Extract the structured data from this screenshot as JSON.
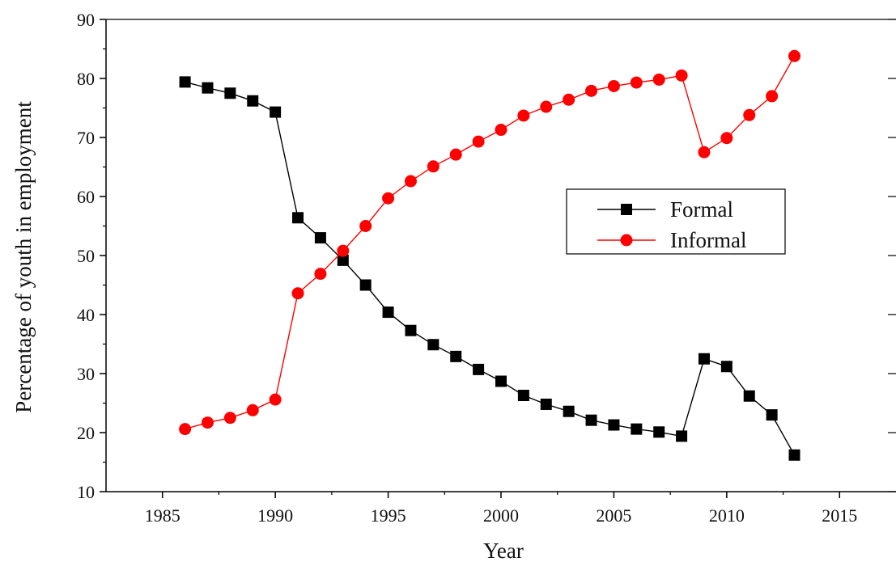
{
  "chart_data": {
    "type": "line",
    "title": "",
    "xlabel": "Year",
    "ylabel": "Percentage of youth in employment",
    "xlim": [
      1982.5,
      2017.5
    ],
    "ylim": [
      10,
      90
    ],
    "xticks": [
      1985,
      1990,
      1995,
      2000,
      2005,
      2010,
      2015
    ],
    "yticks": [
      10,
      20,
      30,
      40,
      50,
      60,
      70,
      80,
      90
    ],
    "grid": false,
    "legend_position": "center-right",
    "x": [
      1986,
      1987,
      1988,
      1989,
      1990,
      1991,
      1992,
      1993,
      1994,
      1995,
      1996,
      1997,
      1998,
      1999,
      2000,
      2001,
      2002,
      2003,
      2004,
      2005,
      2006,
      2007,
      2008,
      2009,
      2010,
      2011,
      2012,
      2013
    ],
    "series": [
      {
        "name": "Formal",
        "color": "#000000",
        "marker": "square",
        "values": [
          79.4,
          78.4,
          77.5,
          76.2,
          74.3,
          56.4,
          53.0,
          49.2,
          45.0,
          40.4,
          37.3,
          34.9,
          32.9,
          30.7,
          28.7,
          26.3,
          24.8,
          23.6,
          22.1,
          21.3,
          20.6,
          20.1,
          19.4,
          32.5,
          31.2,
          26.2,
          23.0,
          16.2
        ]
      },
      {
        "name": "Informal",
        "color": "#ff0000",
        "marker": "circle",
        "values": [
          20.6,
          21.7,
          22.5,
          23.8,
          25.6,
          43.6,
          46.9,
          50.8,
          55.0,
          59.7,
          62.6,
          65.1,
          67.1,
          69.3,
          71.3,
          73.7,
          75.2,
          76.4,
          77.9,
          78.7,
          79.3,
          79.8,
          80.5,
          67.5,
          69.9,
          73.8,
          77.0,
          83.8
        ]
      }
    ]
  }
}
